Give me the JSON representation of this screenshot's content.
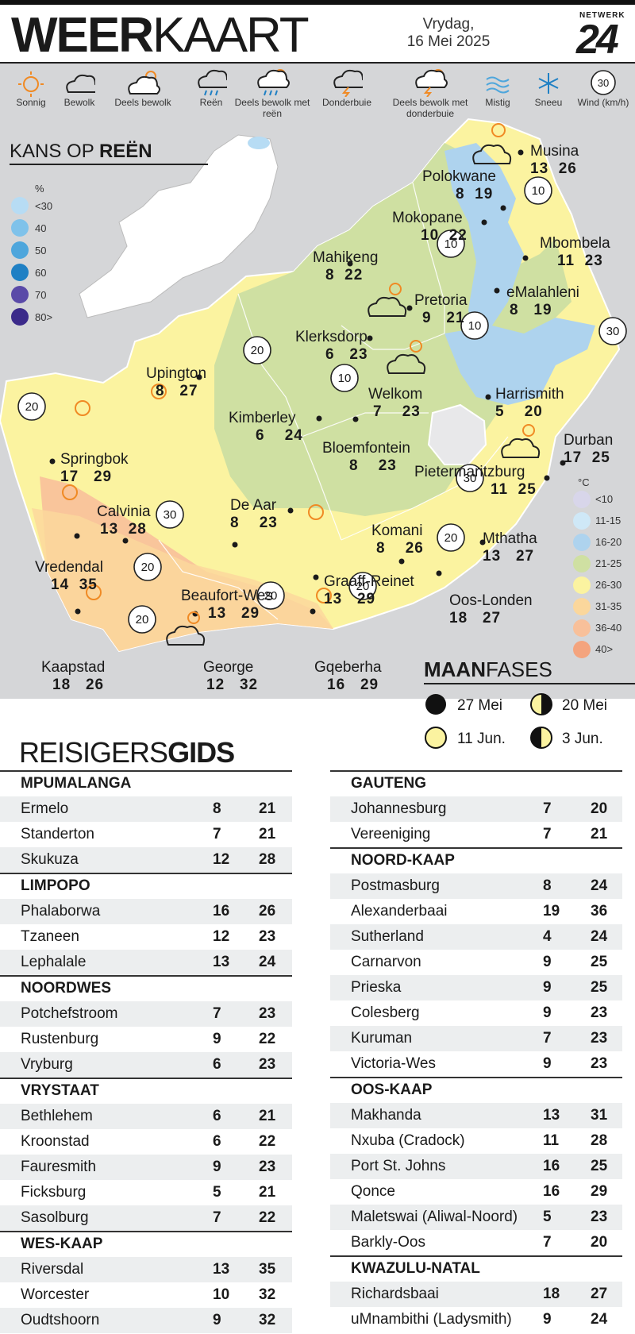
{
  "header": {
    "title_bold": "WEER",
    "title_light": "KAART",
    "date_line1": "Vrydag,",
    "date_line2": "16 Mei 2025",
    "logo_top": "NETWERK",
    "logo_number": "24"
  },
  "legend": [
    {
      "icon": "sun-icon",
      "label": "Sonnig"
    },
    {
      "icon": "cloud-icon",
      "label": "Bewolk"
    },
    {
      "icon": "partly-cloudy-icon",
      "label": "Deels bewolk"
    },
    {
      "icon": "rain-icon",
      "label": "Reën"
    },
    {
      "icon": "partly-cloudy-rain-icon",
      "label": "Deels bewolk met reën"
    },
    {
      "icon": "thunderstorm-icon",
      "label": "Donderbuie"
    },
    {
      "icon": "partly-cloudy-thunder-icon",
      "label": "Deels bewolk met donderbuie"
    },
    {
      "icon": "fog-icon",
      "label": "Mistig"
    },
    {
      "icon": "snow-icon",
      "label": "Sneeu"
    },
    {
      "icon": "wind-icon",
      "label": "Wind (km/h)",
      "value": "30"
    }
  ],
  "rain_chance": {
    "title_light": "KANS OP ",
    "title_bold": "REËN",
    "unit": "%",
    "levels": [
      {
        "label": "<30",
        "color": "#b7dcf4"
      },
      {
        "label": "40",
        "color": "#7fc2ea"
      },
      {
        "label": "50",
        "color": "#4ea6dc"
      },
      {
        "label": "60",
        "color": "#1f80c4"
      },
      {
        "label": "70",
        "color": "#5a4aa8"
      },
      {
        "label": "80>",
        "color": "#3b2a8a"
      }
    ]
  },
  "cities": [
    {
      "name": "Musina",
      "min": "13",
      "max": "26"
    },
    {
      "name": "Polokwane",
      "min": "8",
      "max": "19"
    },
    {
      "name": "Mokopane",
      "min": "10",
      "max": "22"
    },
    {
      "name": "Mbombela",
      "min": "11",
      "max": "23"
    },
    {
      "name": "Mahikeng",
      "min": "8",
      "max": "22"
    },
    {
      "name": "Pretoria",
      "min": "9",
      "max": "21"
    },
    {
      "name": "eMalahleni",
      "min": "8",
      "max": "19"
    },
    {
      "name": "Klerksdorp",
      "min": "6",
      "max": "23"
    },
    {
      "name": "Upington",
      "min": "8",
      "max": "27"
    },
    {
      "name": "Harrismith",
      "min": "5",
      "max": "20"
    },
    {
      "name": "Welkom",
      "min": "7",
      "max": "23"
    },
    {
      "name": "Kimberley",
      "min": "6",
      "max": "24"
    },
    {
      "name": "Bloemfontein",
      "min": "8",
      "max": "23"
    },
    {
      "name": "Durban",
      "min": "17",
      "max": "25"
    },
    {
      "name": "Springbok",
      "min": "17",
      "max": "29"
    },
    {
      "name": "Pietermaritzburg",
      "min": "11",
      "max": "25"
    },
    {
      "name": "Calvinia",
      "min": "13",
      "max": "28"
    },
    {
      "name": "De Aar",
      "min": "8",
      "max": "23"
    },
    {
      "name": "Komani",
      "min": "8",
      "max": "26"
    },
    {
      "name": "Mthatha",
      "min": "13",
      "max": "27"
    },
    {
      "name": "Vredendal",
      "min": "14",
      "max": "35"
    },
    {
      "name": "Graaff-Reinet",
      "min": "13",
      "max": "29"
    },
    {
      "name": "Beaufort-Wes",
      "min": "13",
      "max": "29"
    },
    {
      "name": "Oos-Londen",
      "min": "18",
      "max": "27"
    },
    {
      "name": "Kaapstad",
      "min": "18",
      "max": "26"
    },
    {
      "name": "George",
      "min": "12",
      "max": "32"
    },
    {
      "name": "Gqeberha",
      "min": "16",
      "max": "29"
    }
  ],
  "wind_markers": [
    "10",
    "10",
    "10",
    "30",
    "20",
    "10",
    "20",
    "30",
    "30",
    "20",
    "20",
    "20",
    "20",
    "20"
  ],
  "temp_legend": {
    "unit": "°C",
    "levels": [
      {
        "label": "<10",
        "color": "#d8d6ea"
      },
      {
        "label": "11-15",
        "color": "#cfe8f7"
      },
      {
        "label": "16-20",
        "color": "#aed3ee"
      },
      {
        "label": "21-25",
        "color": "#cfe0a2"
      },
      {
        "label": "26-30",
        "color": "#fbf3a0"
      },
      {
        "label": "31-35",
        "color": "#fbd79c"
      },
      {
        "label": "36-40",
        "color": "#f8c09a"
      },
      {
        "label": "40>",
        "color": "#f4a47e"
      }
    ]
  },
  "moon": {
    "title_bold": "MAAN",
    "title_light": "FASES",
    "phases": [
      {
        "phase": "new-moon",
        "date": "27 Mei"
      },
      {
        "phase": "first-quarter",
        "date": "20 Mei"
      },
      {
        "phase": "full-moon",
        "date": "11 Jun."
      },
      {
        "phase": "last-quarter",
        "date": "3 Jun."
      }
    ]
  },
  "travel": {
    "title_light": "REISIGERS",
    "title_bold": "GIDS",
    "left": [
      {
        "region": "MPUMALANGA",
        "rows": [
          [
            "Ermelo",
            "8",
            "21"
          ],
          [
            "Standerton",
            "7",
            "21"
          ],
          [
            "Skukuza",
            "12",
            "28"
          ]
        ]
      },
      {
        "region": "LIMPOPO",
        "rows": [
          [
            "Phalaborwa",
            "16",
            "26"
          ],
          [
            "Tzaneen",
            "12",
            "23"
          ],
          [
            "Lephalale",
            "13",
            "24"
          ]
        ]
      },
      {
        "region": "NOORDWES",
        "rows": [
          [
            "Potchefstroom",
            "7",
            "23"
          ],
          [
            "Rustenburg",
            "9",
            "22"
          ],
          [
            "Vryburg",
            "6",
            "23"
          ]
        ]
      },
      {
        "region": "VRYSTAAT",
        "rows": [
          [
            "Bethlehem",
            "6",
            "21"
          ],
          [
            "Kroonstad",
            "6",
            "22"
          ],
          [
            "Fauresmith",
            "9",
            "23"
          ],
          [
            "Ficksburg",
            "5",
            "21"
          ],
          [
            "Sasolburg",
            "7",
            "22"
          ]
        ]
      },
      {
        "region": "WES-KAAP",
        "rows": [
          [
            "Riversdal",
            "13",
            "35"
          ],
          [
            "Worcester",
            "10",
            "32"
          ],
          [
            "Oudtshoorn",
            "9",
            "32"
          ]
        ]
      }
    ],
    "right": [
      {
        "region": "GAUTENG",
        "rows": [
          [
            "Johannesburg",
            "7",
            "20"
          ],
          [
            "Vereeniging",
            "7",
            "21"
          ]
        ]
      },
      {
        "region": "NOORD-KAAP",
        "rows": [
          [
            "Postmasburg",
            "8",
            "24"
          ],
          [
            "Alexanderbaai",
            "19",
            "36"
          ],
          [
            "Sutherland",
            "4",
            "24"
          ],
          [
            "Carnarvon",
            "9",
            "25"
          ],
          [
            "Prieska",
            "9",
            "25"
          ],
          [
            "Colesberg",
            "9",
            "23"
          ],
          [
            "Kuruman",
            "7",
            "23"
          ],
          [
            "Victoria-Wes",
            "9",
            "23"
          ]
        ]
      },
      {
        "region": "OOS-KAAP",
        "rows": [
          [
            "Makhanda",
            "13",
            "31"
          ],
          [
            "Nxuba (Cradock)",
            "11",
            "28"
          ],
          [
            "Port St. Johns",
            "16",
            "25"
          ],
          [
            "Qonce",
            "16",
            "29"
          ],
          [
            "Maletswai (Aliwal-Noord)",
            "5",
            "23"
          ],
          [
            "Barkly-Oos",
            "7",
            "20"
          ]
        ]
      },
      {
        "region": "KWAZULU-NATAL",
        "rows": [
          [
            "Richardsbaai",
            "18",
            "27"
          ],
          [
            "uMnambithi (Ladysmith)",
            "9",
            "24"
          ]
        ]
      }
    ]
  }
}
